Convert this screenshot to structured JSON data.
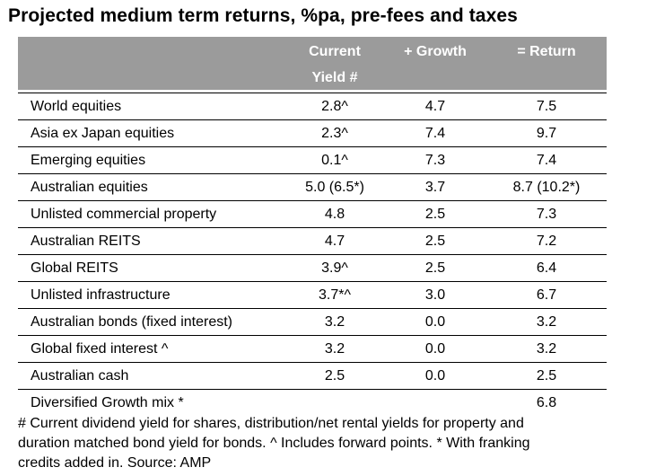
{
  "title": "Projected medium term returns, %pa, pre-fees and taxes",
  "header": {
    "col1_line1": "Current",
    "col1_line2": "Yield #",
    "col2": "+ Growth",
    "col3": "= Return"
  },
  "rows": [
    {
      "label": "World equities",
      "yield": "2.8^",
      "growth": "4.7",
      "ret": "7.5"
    },
    {
      "label": "Asia ex Japan equities",
      "yield": "2.3^",
      "growth": "7.4",
      "ret": "9.7"
    },
    {
      "label": "Emerging equities",
      "yield": "0.1^",
      "growth": "7.3",
      "ret": "7.4"
    },
    {
      "label": "Australian equities",
      "yield": "5.0 (6.5*)",
      "growth": "3.7",
      "ret": "8.7 (10.2*)"
    },
    {
      "label": "Unlisted commercial property",
      "yield": "4.8",
      "growth": "2.5",
      "ret": "7.3"
    },
    {
      "label": "Australian REITS",
      "yield": "4.7",
      "growth": "2.5",
      "ret": "7.2"
    },
    {
      "label": "Global REITS",
      "yield": "3.9^",
      "growth": "2.5",
      "ret": "6.4"
    },
    {
      "label": "Unlisted infrastructure",
      "yield": "3.7*^",
      "growth": "3.0",
      "ret": "6.7"
    },
    {
      "label": "Australian bonds (fixed interest)",
      "yield": "3.2",
      "growth": "0.0",
      "ret": "3.2"
    },
    {
      "label": "Global fixed interest ^",
      "yield": "3.2",
      "growth": "0.0",
      "ret": "3.2"
    },
    {
      "label": "Australian cash",
      "yield": "2.5",
      "growth": "0.0",
      "ret": "2.5"
    },
    {
      "label": "Diversified Growth mix *",
      "yield": "",
      "growth": "",
      "ret": "6.8"
    }
  ],
  "footnote": {
    "line1": "# Current dividend yield for shares, distribution/net rental yields for property and",
    "line2": "duration matched bond yield for bonds. ^ Includes forward points. * With franking",
    "line3": "credits added in. Source: AMP"
  }
}
